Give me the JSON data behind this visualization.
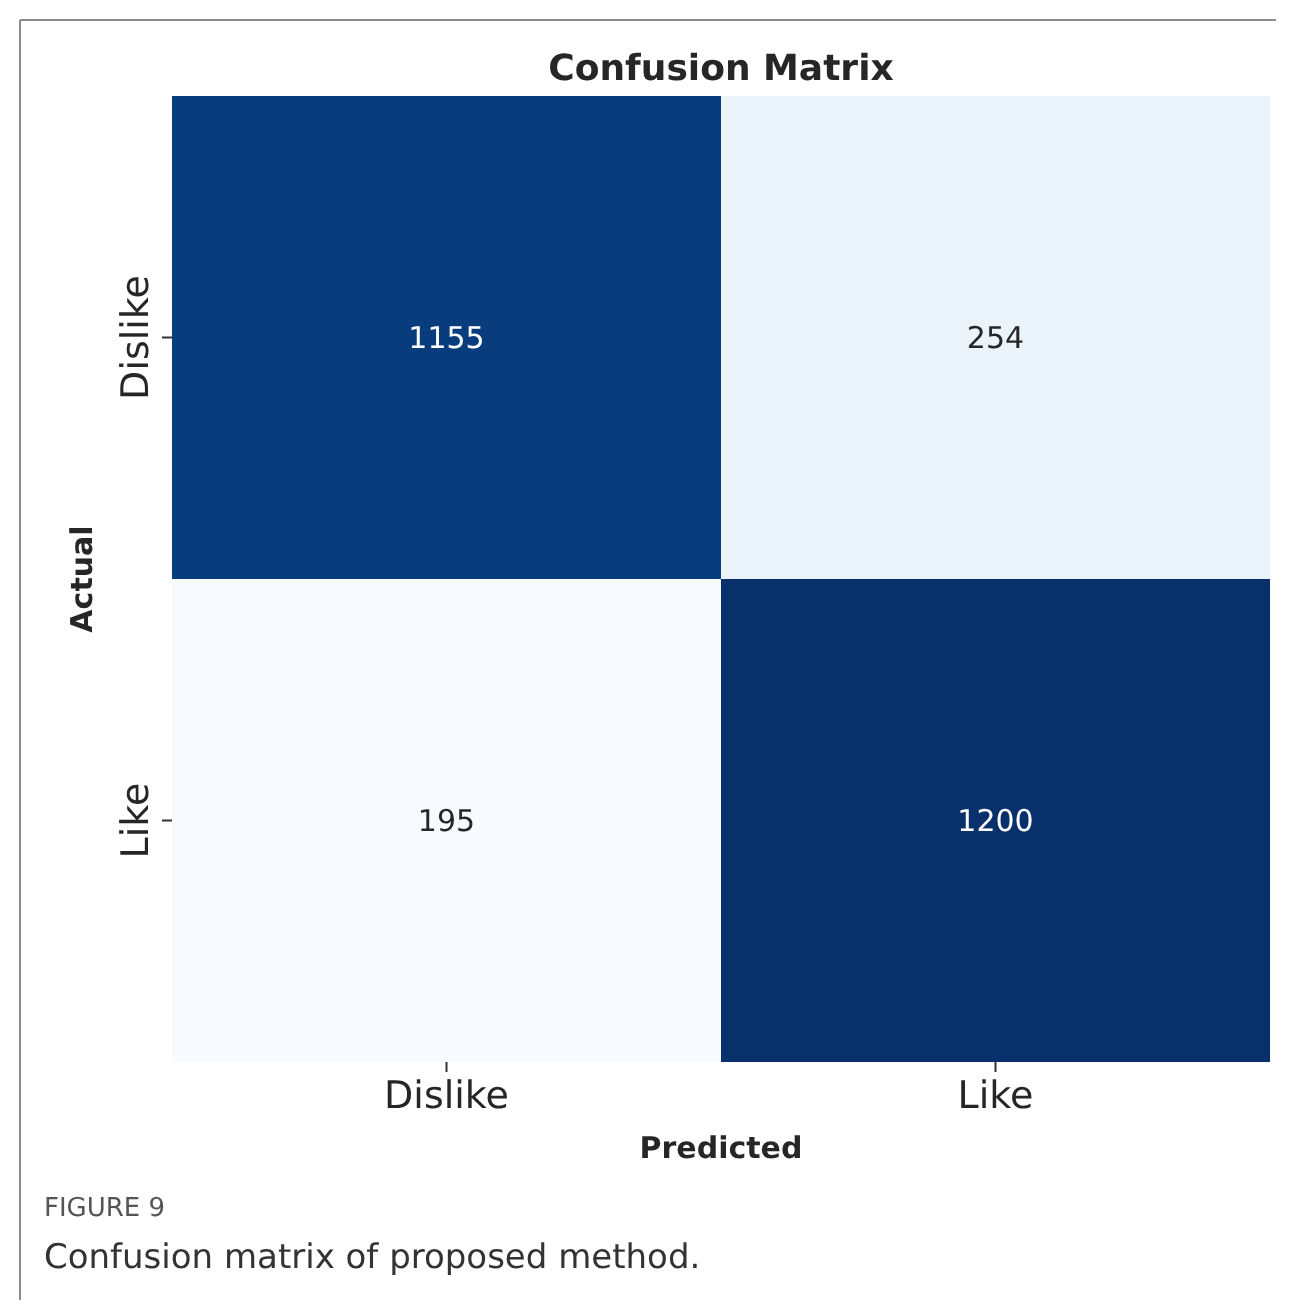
{
  "chart_data": {
    "type": "heatmap",
    "title": "Confusion Matrix",
    "xlabel": "Predicted",
    "ylabel": "Actual",
    "categories": [
      "Dislike",
      "Like"
    ],
    "y_categories": [
      "Dislike",
      "Like"
    ],
    "cells": [
      [
        1155,
        254
      ],
      [
        195,
        1200
      ]
    ],
    "data_labels": true,
    "annotations": [
      "FIGURE 9",
      "Confusion matrix of proposed method."
    ]
  }
}
